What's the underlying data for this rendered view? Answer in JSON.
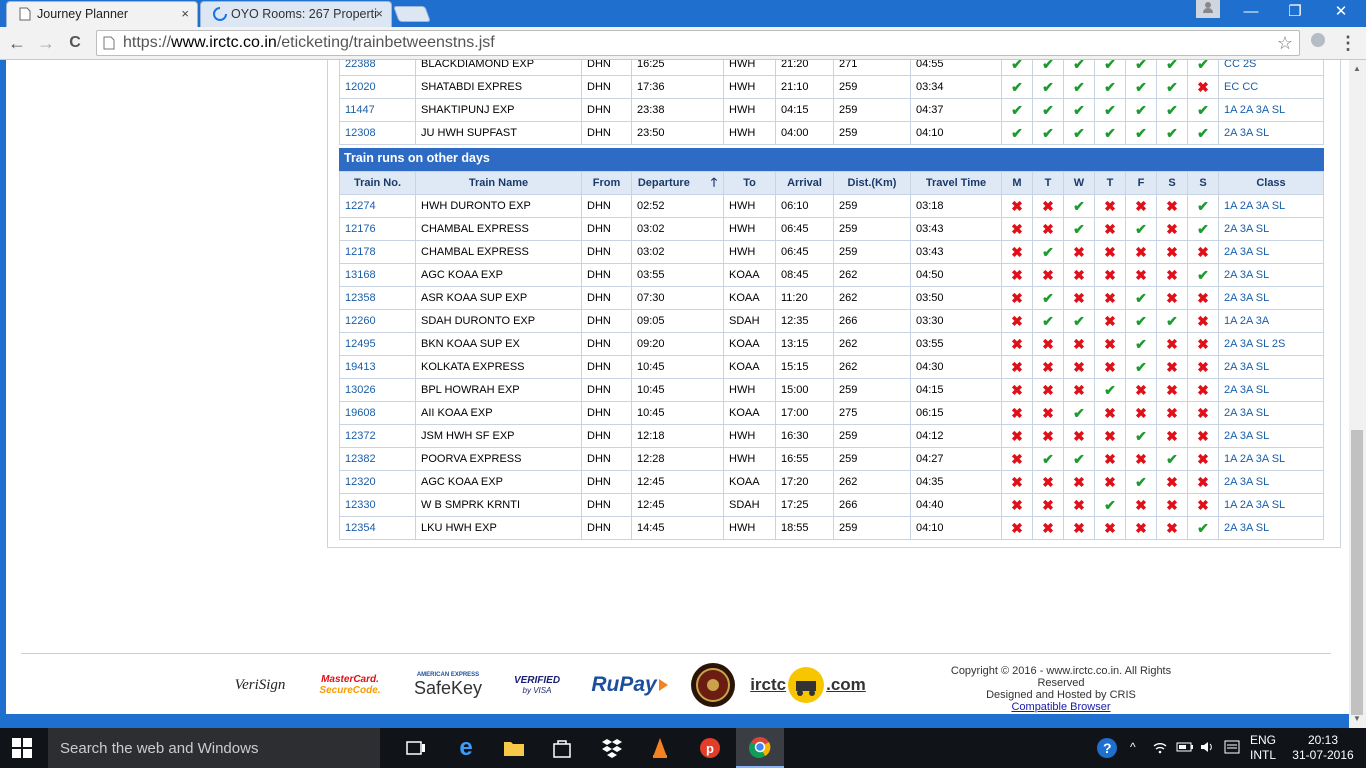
{
  "browser": {
    "tabs": [
      {
        "title": "Journey Planner",
        "active": true
      },
      {
        "title": "OYO Rooms: 267 Properti",
        "active": false
      }
    ],
    "url_scheme": "https://",
    "url_host": "www.irctc.co.in",
    "url_path": "/eticketing/trainbetweenstns.jsf",
    "tab_close": "×",
    "win_min": "—",
    "win_max": "❐",
    "win_close": "✕",
    "back": "←",
    "forward": "→",
    "reload": "C",
    "star": "☆",
    "menu": "⋮"
  },
  "top_rows": [
    {
      "no": "22388",
      "name": "BLACKDIAMOND EXP",
      "from": "DHN",
      "dep": "16:25",
      "to": "HWH",
      "arr": "21:20",
      "dist": "271",
      "travel": "04:55",
      "days": [
        1,
        1,
        1,
        1,
        1,
        1,
        1
      ],
      "cls": "CC 2S"
    },
    {
      "no": "12020",
      "name": "SHATABDI EXPRES",
      "from": "DHN",
      "dep": "17:36",
      "to": "HWH",
      "arr": "21:10",
      "dist": "259",
      "travel": "03:34",
      "days": [
        1,
        1,
        1,
        1,
        1,
        1,
        0
      ],
      "cls": "EC CC"
    },
    {
      "no": "11447",
      "name": "SHAKTIPUNJ EXP",
      "from": "DHN",
      "dep": "23:38",
      "to": "HWH",
      "arr": "04:15",
      "dist": "259",
      "travel": "04:37",
      "days": [
        1,
        1,
        1,
        1,
        1,
        1,
        1
      ],
      "cls": "1A 2A 3A SL"
    },
    {
      "no": "12308",
      "name": "JU HWH SUPFAST",
      "from": "DHN",
      "dep": "23:50",
      "to": "HWH",
      "arr": "04:00",
      "dist": "259",
      "travel": "04:10",
      "days": [
        1,
        1,
        1,
        1,
        1,
        1,
        1
      ],
      "cls": "2A 3A SL"
    }
  ],
  "section_title": "Train runs on other days",
  "headers": [
    "Train No.",
    "Train Name",
    "From",
    "Departure",
    "To",
    "Arrival",
    "Dist.(Km)",
    "Travel Time",
    "M",
    "T",
    "W",
    "T",
    "F",
    "S",
    "S",
    "Class"
  ],
  "sort_indicator": "🠕",
  "rows": [
    {
      "no": "12274",
      "name": "HWH DURONTO EXP",
      "from": "DHN",
      "dep": "02:52",
      "to": "HWH",
      "arr": "06:10",
      "dist": "259",
      "travel": "03:18",
      "days": [
        0,
        0,
        1,
        0,
        0,
        0,
        1
      ],
      "cls": "1A 2A 3A SL"
    },
    {
      "no": "12176",
      "name": "CHAMBAL EXPRESS",
      "from": "DHN",
      "dep": "03:02",
      "to": "HWH",
      "arr": "06:45",
      "dist": "259",
      "travel": "03:43",
      "days": [
        0,
        0,
        1,
        0,
        1,
        0,
        1
      ],
      "cls": "2A 3A SL"
    },
    {
      "no": "12178",
      "name": "CHAMBAL EXPRESS",
      "from": "DHN",
      "dep": "03:02",
      "to": "HWH",
      "arr": "06:45",
      "dist": "259",
      "travel": "03:43",
      "days": [
        0,
        1,
        0,
        0,
        0,
        0,
        0
      ],
      "cls": "2A 3A SL"
    },
    {
      "no": "13168",
      "name": "AGC KOAA EXP",
      "from": "DHN",
      "dep": "03:55",
      "to": "KOAA",
      "arr": "08:45",
      "dist": "262",
      "travel": "04:50",
      "days": [
        0,
        0,
        0,
        0,
        0,
        0,
        1
      ],
      "cls": "2A 3A SL"
    },
    {
      "no": "12358",
      "name": "ASR KOAA SUP EXP",
      "from": "DHN",
      "dep": "07:30",
      "to": "KOAA",
      "arr": "11:20",
      "dist": "262",
      "travel": "03:50",
      "days": [
        0,
        1,
        0,
        0,
        1,
        0,
        0
      ],
      "cls": "2A 3A SL"
    },
    {
      "no": "12260",
      "name": "SDAH DURONTO EXP",
      "from": "DHN",
      "dep": "09:05",
      "to": "SDAH",
      "arr": "12:35",
      "dist": "266",
      "travel": "03:30",
      "days": [
        0,
        1,
        1,
        0,
        1,
        1,
        0
      ],
      "cls": "1A 2A 3A"
    },
    {
      "no": "12495",
      "name": "BKN KOAA SUP EX",
      "from": "DHN",
      "dep": "09:20",
      "to": "KOAA",
      "arr": "13:15",
      "dist": "262",
      "travel": "03:55",
      "days": [
        0,
        0,
        0,
        0,
        1,
        0,
        0
      ],
      "cls": "2A 3A SL 2S"
    },
    {
      "no": "19413",
      "name": "KOLKATA EXPRESS",
      "from": "DHN",
      "dep": "10:45",
      "to": "KOAA",
      "arr": "15:15",
      "dist": "262",
      "travel": "04:30",
      "days": [
        0,
        0,
        0,
        0,
        1,
        0,
        0
      ],
      "cls": "2A 3A SL"
    },
    {
      "no": "13026",
      "name": "BPL HOWRAH EXP",
      "from": "DHN",
      "dep": "10:45",
      "to": "HWH",
      "arr": "15:00",
      "dist": "259",
      "travel": "04:15",
      "days": [
        0,
        0,
        0,
        1,
        0,
        0,
        0
      ],
      "cls": "2A 3A SL"
    },
    {
      "no": "19608",
      "name": "AII KOAA EXP",
      "from": "DHN",
      "dep": "10:45",
      "to": "KOAA",
      "arr": "17:00",
      "dist": "275",
      "travel": "06:15",
      "days": [
        0,
        0,
        1,
        0,
        0,
        0,
        0
      ],
      "cls": "2A 3A SL"
    },
    {
      "no": "12372",
      "name": "JSM HWH SF EXP",
      "from": "DHN",
      "dep": "12:18",
      "to": "HWH",
      "arr": "16:30",
      "dist": "259",
      "travel": "04:12",
      "days": [
        0,
        0,
        0,
        0,
        1,
        0,
        0
      ],
      "cls": "2A 3A SL"
    },
    {
      "no": "12382",
      "name": "POORVA EXPRESS",
      "from": "DHN",
      "dep": "12:28",
      "to": "HWH",
      "arr": "16:55",
      "dist": "259",
      "travel": "04:27",
      "days": [
        0,
        1,
        1,
        0,
        0,
        1,
        0
      ],
      "cls": "1A 2A 3A SL"
    },
    {
      "no": "12320",
      "name": "AGC KOAA EXP",
      "from": "DHN",
      "dep": "12:45",
      "to": "KOAA",
      "arr": "17:20",
      "dist": "262",
      "travel": "04:35",
      "days": [
        0,
        0,
        0,
        0,
        1,
        0,
        0
      ],
      "cls": "2A 3A SL"
    },
    {
      "no": "12330",
      "name": "W B SMPRK KRNTI",
      "from": "DHN",
      "dep": "12:45",
      "to": "SDAH",
      "arr": "17:25",
      "dist": "266",
      "travel": "04:40",
      "days": [
        0,
        0,
        0,
        1,
        0,
        0,
        0
      ],
      "cls": "1A 2A 3A SL"
    },
    {
      "no": "12354",
      "name": "LKU HWH EXP",
      "from": "DHN",
      "dep": "14:45",
      "to": "HWH",
      "arr": "18:55",
      "dist": "259",
      "travel": "04:10",
      "days": [
        0,
        0,
        0,
        0,
        0,
        0,
        1
      ],
      "cls": "2A 3A SL"
    }
  ],
  "footer": {
    "logos": {
      "verisign": "VeriSign",
      "mastercard_1": "MasterCard.",
      "mastercard_2": "SecureCode.",
      "amex_1": "AMERICAN EXPRESS",
      "amex_2": "SafeKey",
      "visa_1": "VERIFIED",
      "visa_2": "by VISA",
      "rupay": "RuPay",
      "irctc": "irctc",
      "irctc_com": ".com"
    },
    "copyright": "Copyright © 2016 - www.irctc.co.in. All Rights Reserved",
    "hosted": "Designed and Hosted by CRIS",
    "compatible": "Compatible Browser"
  },
  "taskbar": {
    "search_placeholder": "Search the web and Windows",
    "lang_1": "ENG",
    "lang_2": "INTL",
    "time": "20:13",
    "date": "31-07-2016"
  },
  "colors": {
    "accent": "#2d6bc4",
    "check": "#1d9b2f",
    "cross": "#e0101a",
    "link": "#1a5ea8",
    "chrome_frame": "#1e6fce"
  }
}
